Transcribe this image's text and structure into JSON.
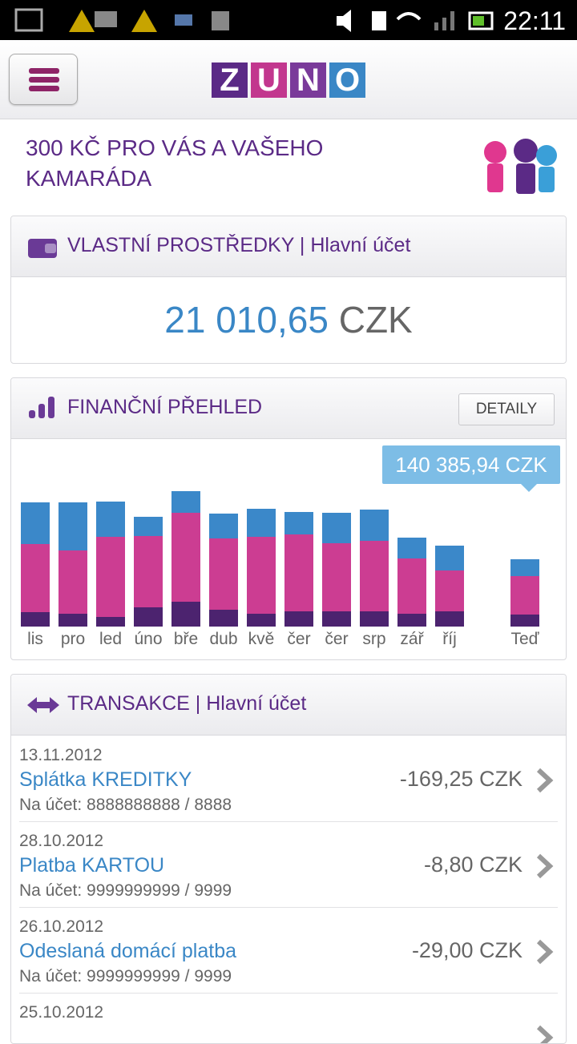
{
  "status_bar": {
    "time": "22:11"
  },
  "header": {
    "logo": [
      "Z",
      "U",
      "N",
      "O"
    ]
  },
  "promo": {
    "text": "300 KČ PRO VÁS A VAŠEHO KAMARÁDA"
  },
  "balance": {
    "title": "VLASTNÍ PROSTŘEDKY",
    "account": "| Hlavní účet",
    "amount": "21 010,65",
    "currency": "CZK"
  },
  "overview": {
    "title": "FINANČNÍ PŘEHLED",
    "button": "DETAILY",
    "tooltip": "140 385,94 CZK"
  },
  "chart_data": {
    "type": "stacked-bar",
    "categories": [
      "lis",
      "pro",
      "led",
      "úno",
      "bře",
      "dub",
      "kvě",
      "čer",
      "čer",
      "srp",
      "zář",
      "říj",
      null,
      "Teď"
    ],
    "series": [
      {
        "color": "#4c236f",
        "values": [
          18,
          16,
          12,
          24,
          31,
          21,
          16,
          19,
          19,
          19,
          16,
          19,
          null,
          15
        ]
      },
      {
        "color": "#cc3d92",
        "values": [
          85,
          79,
          100,
          89,
          111,
          89,
          96,
          96,
          85,
          88,
          69,
          51,
          null,
          48
        ]
      },
      {
        "color": "#3b88c9",
        "values": [
          52,
          60,
          44,
          24,
          27,
          31,
          35,
          28,
          38,
          39,
          26,
          31,
          null,
          21
        ]
      }
    ]
  },
  "transactions": {
    "title": "TRANSAKCE",
    "account": "| Hlavní účet",
    "items": [
      {
        "date": "13.11.2012",
        "name": "Splátka KREDITKY",
        "account": "Na účet: 8888888888 / 8888",
        "amount": "-169,25 CZK"
      },
      {
        "date": "28.10.2012",
        "name": "Platba KARTOU",
        "account": "Na účet: 9999999999 / 9999",
        "amount": "-8,80 CZK"
      },
      {
        "date": "26.10.2012",
        "name": "Odeslaná domácí platba",
        "account": "Na účet: 9999999999 / 9999",
        "amount": "-29,00 CZK"
      },
      {
        "date": "25.10.2012"
      }
    ]
  }
}
